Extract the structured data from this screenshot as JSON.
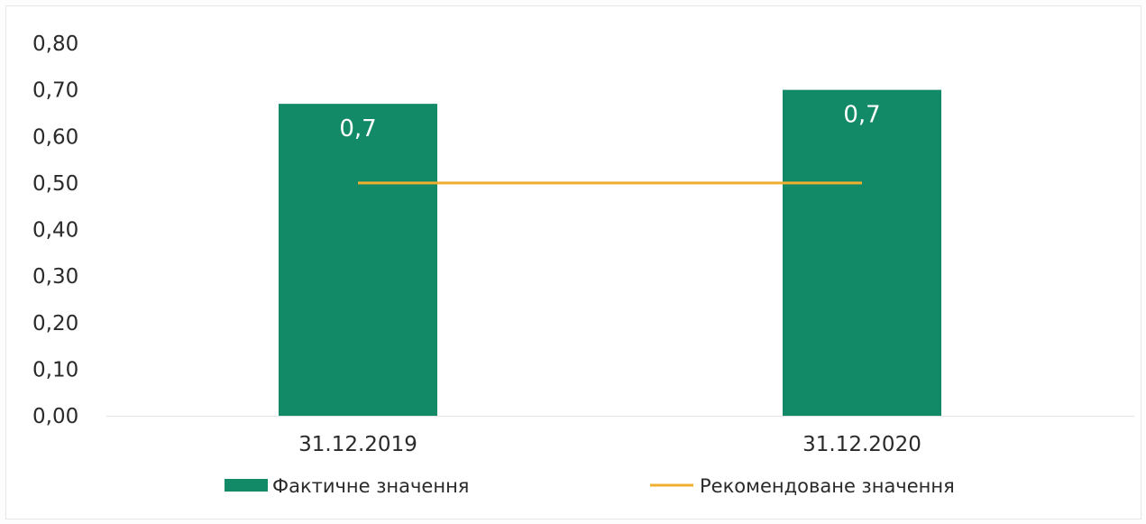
{
  "chart_data": {
    "type": "bar",
    "categories": [
      "31.12.2019",
      "31.12.2020"
    ],
    "series": [
      {
        "name": "Фактичне значення",
        "type": "bar",
        "values": [
          0.67,
          0.7
        ],
        "data_labels": [
          "0,7",
          "0,7"
        ],
        "color": "#138a67"
      },
      {
        "name": "Рекомендоване значення",
        "type": "line",
        "values": [
          0.5,
          0.5
        ],
        "color": "#f0ae2e"
      }
    ],
    "ylim": [
      0,
      0.8
    ],
    "yticks": [
      "0,00",
      "0,10",
      "0,20",
      "0,30",
      "0,40",
      "0,50",
      "0,60",
      "0,70",
      "0,80"
    ],
    "grid": false,
    "legend_position": "bottom",
    "title": "",
    "xlabel": "",
    "ylabel": ""
  }
}
